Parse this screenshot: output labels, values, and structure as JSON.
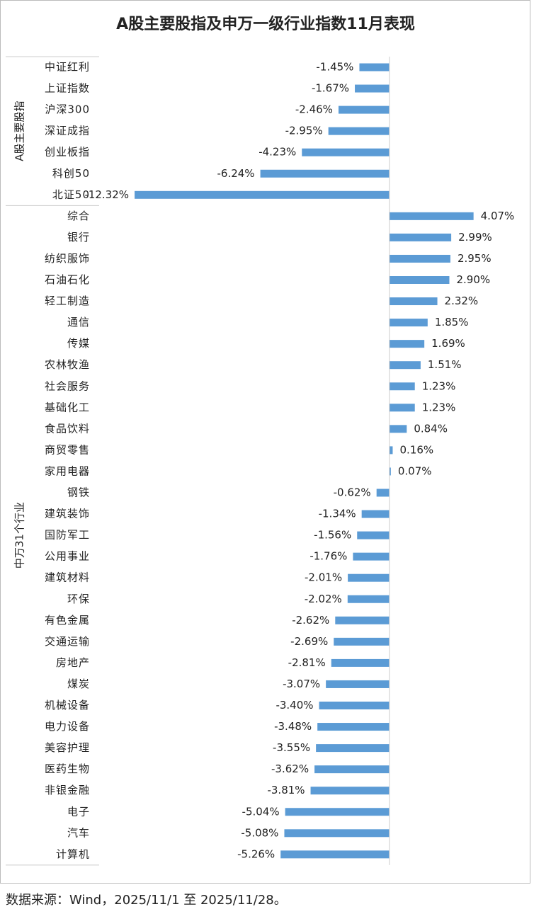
{
  "chart_data": {
    "type": "bar",
    "orientation": "horizontal",
    "title": "A股主要股指及申万一级行业指数11月表现",
    "source": "数据来源：Wind，2025/11/1 至 2025/11/28。",
    "color": "#5b9bd5",
    "xlim": [
      -14,
      6
    ],
    "groups": [
      {
        "name": "A股主要股指",
        "categories": [
          "中证红利",
          "上证指数",
          "沪深300",
          "深证成指",
          "创业板指",
          "科创50",
          "北证50"
        ],
        "values": [
          -1.45,
          -1.67,
          -2.46,
          -2.95,
          -4.23,
          -6.24,
          -12.32
        ],
        "value_labels": [
          "-1.45%",
          "-1.67%",
          "-2.46%",
          "-2.95%",
          "-4.23%",
          "-6.24%",
          "-12.32%"
        ]
      },
      {
        "name": "中万31个行业",
        "categories": [
          "综合",
          "银行",
          "纺织服饰",
          "石油石化",
          "轻工制造",
          "通信",
          "传媒",
          "农林牧渔",
          "社会服务",
          "基础化工",
          "食品饮料",
          "商贸零售",
          "家用电器",
          "钢铁",
          "建筑装饰",
          "国防军工",
          "公用事业",
          "建筑材料",
          "环保",
          "有色金属",
          "交通运输",
          "房地产",
          "煤炭",
          "机械设备",
          "电力设备",
          "美容护理",
          "医药生物",
          "非银金融",
          "电子",
          "汽车",
          "计算机"
        ],
        "values": [
          4.07,
          2.99,
          2.95,
          2.9,
          2.32,
          1.85,
          1.69,
          1.51,
          1.23,
          1.23,
          0.84,
          0.16,
          0.07,
          -0.62,
          -1.34,
          -1.56,
          -1.76,
          -2.01,
          -2.02,
          -2.62,
          -2.69,
          -2.81,
          -3.07,
          -3.4,
          -3.48,
          -3.55,
          -3.62,
          -3.81,
          -5.04,
          -5.08,
          -5.26
        ],
        "value_labels": [
          "4.07%",
          "2.99%",
          "2.95%",
          "2.90%",
          "2.32%",
          "1.85%",
          "1.69%",
          "1.51%",
          "1.23%",
          "1.23%",
          "0.84%",
          "0.16%",
          "0.07%",
          "-0.62%",
          "-1.34%",
          "-1.56%",
          "-1.76%",
          "-2.01%",
          "-2.02%",
          "-2.62%",
          "-2.69%",
          "-2.81%",
          "-3.07%",
          "-3.40%",
          "-3.48%",
          "-3.55%",
          "-3.62%",
          "-3.81%",
          "-5.04%",
          "-5.08%",
          "-5.26%"
        ]
      }
    ]
  }
}
